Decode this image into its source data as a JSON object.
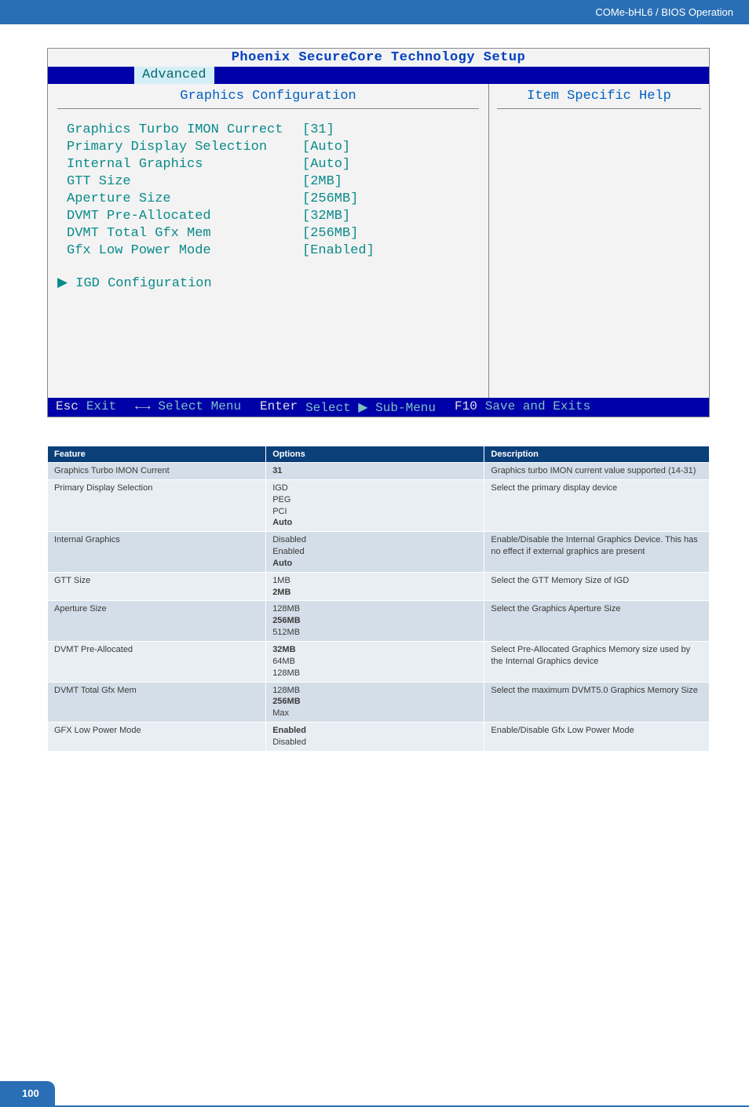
{
  "header": {
    "title": "COMe-bHL6 / BIOS Operation"
  },
  "bios": {
    "title": "Phoenix SecureCore Technology Setup",
    "tab_spacer": "",
    "tab_active": "Advanced",
    "main_header": "Graphics Configuration",
    "help_header": "Item Specific Help",
    "rows": [
      {
        "label": "Graphics Turbo IMON Currect",
        "value": "[31]"
      },
      {
        "label": "",
        "value": ""
      },
      {
        "label": "Primary Display Selection",
        "value": "[Auto]"
      },
      {
        "label": "Internal Graphics",
        "value": "[Auto]"
      },
      {
        "label": "GTT Size",
        "value": "[2MB]"
      },
      {
        "label": "Aperture Size",
        "value": "[256MB]"
      },
      {
        "label": "DVMT Pre-Allocated",
        "value": "[32MB]"
      },
      {
        "label": "DVMT Total Gfx Mem",
        "value": "[256MB]"
      },
      {
        "label": "Gfx Low Power Mode",
        "value": "[Enabled]"
      }
    ],
    "submenu": "▶ IGD Configuration",
    "footer": {
      "k1": "Esc",
      "a1": "Exit",
      "k2": "←→",
      "a2": "Select Menu",
      "k3": "Enter",
      "a3": "Select ▶ Sub-Menu",
      "k4": "F10",
      "a4": "Save and Exits"
    }
  },
  "table": {
    "headers": [
      "Feature",
      "Options",
      "Description"
    ],
    "rows": [
      {
        "feature": "Graphics Turbo IMON Current",
        "options": [
          {
            "t": "31",
            "b": true
          }
        ],
        "desc": "Graphics turbo IMON current value supported (14-31)"
      },
      {
        "feature": "Primary Display Selection",
        "options": [
          {
            "t": "IGD"
          },
          {
            "t": "PEG"
          },
          {
            "t": "PCI"
          },
          {
            "t": "Auto",
            "b": true
          }
        ],
        "desc": "Select the primary display device"
      },
      {
        "feature": "Internal Graphics",
        "options": [
          {
            "t": "Disabled"
          },
          {
            "t": "Enabled"
          },
          {
            "t": "Auto",
            "b": true
          }
        ],
        "desc": "Enable/Disable the Internal Graphics Device. This has no effect if external graphics are present"
      },
      {
        "feature": "GTT Size",
        "options": [
          {
            "t": "1MB"
          },
          {
            "t": "2MB",
            "b": true
          }
        ],
        "desc": "Select the GTT Memory Size of IGD"
      },
      {
        "feature": "Aperture Size",
        "options": [
          {
            "t": "128MB"
          },
          {
            "t": "256MB",
            "b": true
          },
          {
            "t": "512MB"
          }
        ],
        "desc": "Select the Graphics Aperture Size"
      },
      {
        "feature": "DVMT Pre-Allocated",
        "options": [
          {
            "t": "32MB",
            "b": true
          },
          {
            "t": "64MB"
          },
          {
            "t": "128MB"
          }
        ],
        "desc": "Select Pre-Allocated Graphics Memory size used by the Internal Graphics device"
      },
      {
        "feature": "DVMT Total Gfx Mem",
        "options": [
          {
            "t": "128MB"
          },
          {
            "t": "256MB",
            "b": true
          },
          {
            "t": "Max"
          }
        ],
        "desc": "Select the maximum DVMT5.0 Graphics Memory Size"
      },
      {
        "feature": "GFX Low Power Mode",
        "options": [
          {
            "t": "Enabled",
            "b": true
          },
          {
            "t": "Disabled"
          }
        ],
        "desc": "Enable/Disable Gfx Low Power Mode"
      }
    ]
  },
  "page_number": "100"
}
